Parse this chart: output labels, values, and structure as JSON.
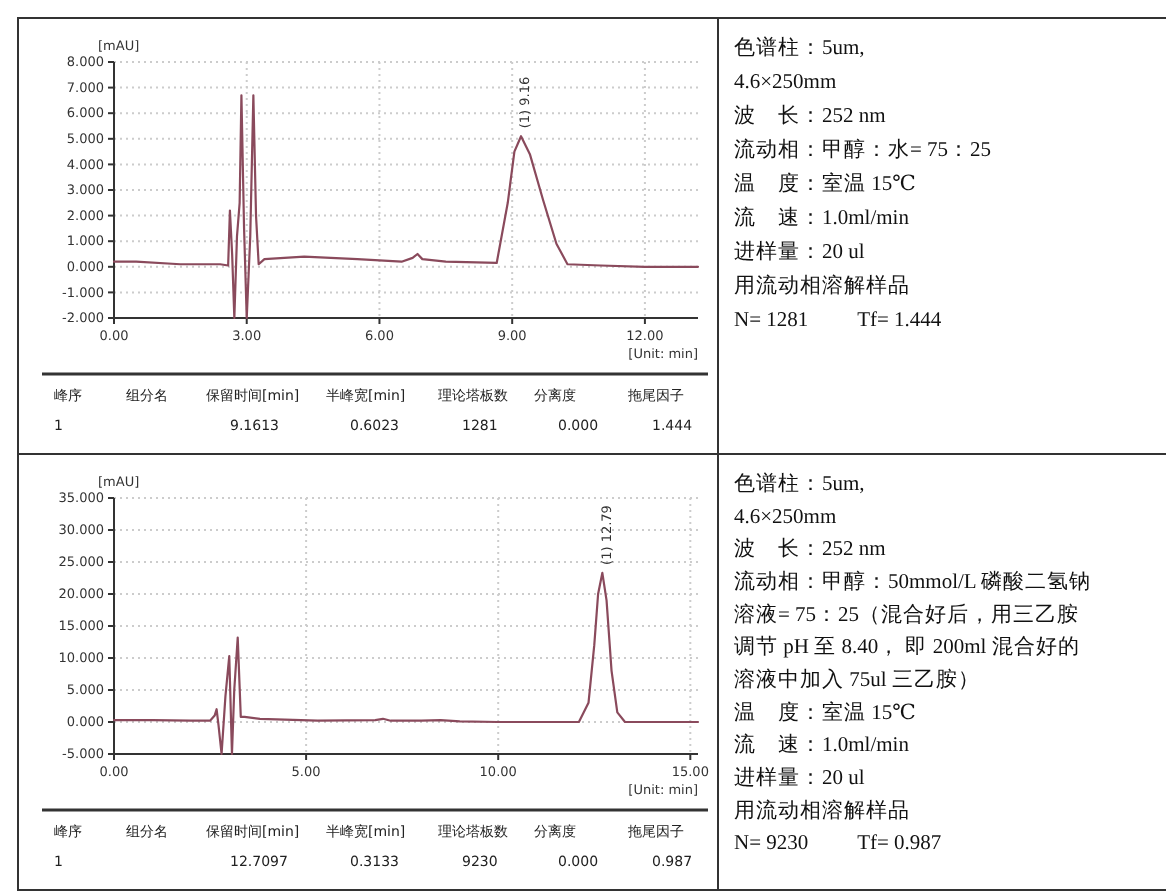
{
  "chart_data": [
    {
      "type": "line",
      "ylabel": "[mAU]",
      "xlabel": "[Unit: min]",
      "xlim": [
        0,
        13.2
      ],
      "xticks": [
        {
          "value": 0,
          "label": "0.00"
        },
        {
          "value": 3,
          "label": "3.00"
        },
        {
          "value": 6,
          "label": "6.00"
        },
        {
          "value": 9,
          "label": "9.00"
        },
        {
          "value": 12,
          "label": "12.00"
        }
      ],
      "ylim": [
        -2,
        8
      ],
      "yticks": [
        {
          "value": -2,
          "label": "-2.000"
        },
        {
          "value": -1,
          "label": "-1.000"
        },
        {
          "value": 0,
          "label": "0.000"
        },
        {
          "value": 1,
          "label": "1.000"
        },
        {
          "value": 2,
          "label": "2.000"
        },
        {
          "value": 3,
          "label": "3.000"
        },
        {
          "value": 4,
          "label": "4.000"
        },
        {
          "value": 5,
          "label": "5.000"
        },
        {
          "value": 6,
          "label": "6.000"
        },
        {
          "value": 7,
          "label": "7.000"
        },
        {
          "value": 8,
          "label": "8.000"
        }
      ],
      "grid": true,
      "marker": "none",
      "line_style": "solid",
      "series": [
        {
          "color": "#8a4a5c",
          "x": [
            0,
            0.5,
            1.5,
            2.4,
            2.58,
            2.62,
            2.67,
            2.72,
            2.78,
            2.84,
            2.88,
            2.94,
            3.0,
            3.08,
            3.15,
            3.21,
            3.27,
            3.4,
            4.3,
            5.5,
            6.5,
            6.75,
            6.86,
            6.97,
            7.5,
            8.65,
            8.9,
            9.05,
            9.2,
            9.4,
            9.7,
            10.0,
            10.25,
            11.0,
            12.0,
            13.2
          ],
          "values": [
            0.2,
            0.2,
            0.1,
            0.1,
            0.05,
            2.2,
            0.5,
            -2,
            1.2,
            2.5,
            6.7,
            1.5,
            -2,
            1.2,
            6.7,
            2.0,
            0.1,
            0.3,
            0.4,
            0.3,
            0.2,
            0.35,
            0.5,
            0.3,
            0.2,
            0.15,
            2.5,
            4.5,
            5.1,
            4.4,
            2.6,
            0.9,
            0.1,
            0.05,
            0.0,
            0.0
          ]
        }
      ],
      "annotations": [
        {
          "text": "(1) 9.16",
          "x": 9.2,
          "y": 5.1
        },
        "峰序  组分名  保留时间[min]  半峰宽[min]  理论塔板数  分离度  拖尾因子",
        "1  9.1613  0.6023  1281  0.000  1.444",
        "色谱柱：5um,",
        "4.6×250mm",
        "波　长：252 nm",
        "流动相：甲醇：水= 75：25",
        "温　度：室温 15℃",
        "流　速：1.0ml/min",
        "进样量：20 ul",
        "用流动相溶解样品",
        "N= 1281　　 Tf= 1.444"
      ]
    },
    {
      "type": "line",
      "ylabel": "[mAU]",
      "xlabel": "[Unit: min]",
      "xlim": [
        0,
        15.2
      ],
      "xticks": [
        {
          "value": 0,
          "label": "0.00"
        },
        {
          "value": 5,
          "label": "5.00"
        },
        {
          "value": 10,
          "label": "10.00"
        },
        {
          "value": 15,
          "label": "15.00"
        }
      ],
      "ylim": [
        -5,
        35
      ],
      "yticks": [
        {
          "value": -5,
          "label": "-5.000"
        },
        {
          "value": 0,
          "label": "0.000"
        },
        {
          "value": 5,
          "label": "5.000"
        },
        {
          "value": 10,
          "label": "10.000"
        },
        {
          "value": 15,
          "label": "15.000"
        },
        {
          "value": 20,
          "label": "20.000"
        },
        {
          "value": 25,
          "label": "25.000"
        },
        {
          "value": 30,
          "label": "30.000"
        },
        {
          "value": 35,
          "label": "35.000"
        }
      ],
      "grid": true,
      "marker": "none",
      "line_style": "solid",
      "series": [
        {
          "color": "#8a4a5c",
          "x": [
            0,
            1,
            2,
            2.5,
            2.62,
            2.67,
            2.72,
            2.8,
            2.9,
            3.0,
            3.07,
            3.13,
            3.22,
            3.3,
            3.4,
            3.8,
            5.3,
            6.8,
            7.0,
            7.2,
            8.0,
            8.5,
            9.0,
            10.0,
            12.1,
            12.35,
            12.5,
            12.6,
            12.71,
            12.82,
            12.95,
            13.1,
            13.3,
            14.0,
            15.2
          ],
          "values": [
            0.3,
            0.3,
            0.2,
            0.2,
            1.0,
            2.0,
            -0.5,
            -5,
            4,
            10.3,
            -5,
            5,
            13.2,
            0.8,
            0.8,
            0.5,
            0.2,
            0.3,
            0.5,
            0.2,
            0.2,
            0.3,
            0.1,
            0.0,
            0.0,
            3,
            12,
            20,
            23.3,
            19,
            8,
            1.5,
            0.0,
            0.0,
            0.0
          ]
        }
      ],
      "annotations": [
        {
          "text": "(1) 12.79",
          "x": 12.71,
          "y": 23.3
        },
        "峰序  组分名  保留时间[min]  半峰宽[min]  理论塔板数  分离度  拖尾因子",
        "1  12.7097  0.3133  9230  0.000  0.987",
        "色谱柱：5um,",
        "4.6×250mm",
        "波　长：252 nm",
        "流动相：甲醇：50mmol/L 磷酸二氢钠",
        "溶液= 75：25（混合好后，用三乙胺",
        "调节 pH 至 8.40， 即 200ml 混合好的",
        "溶液中加入 75ul 三乙胺）",
        "温　度：室温 15℃",
        "流　速：1.0ml/min",
        "进样量：20 ul",
        "用流动相溶解样品",
        "N= 9230　　 Tf= 0.987"
      ]
    }
  ]
}
